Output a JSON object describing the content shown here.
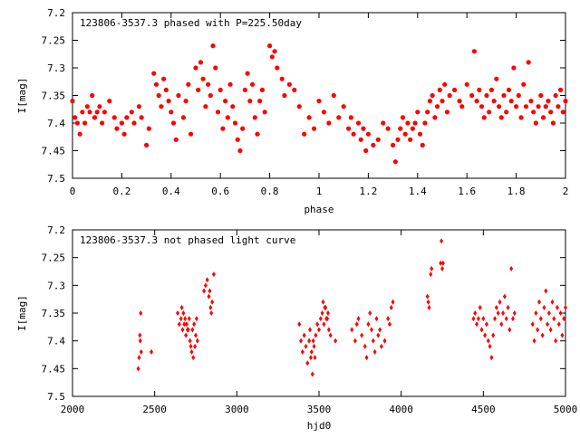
{
  "chart_data": [
    {
      "type": "scatter",
      "title": "123806-3537.3 phased with P=225.50day",
      "xlabel": "phase",
      "ylabel": "I[mag]",
      "xlim": [
        0,
        2
      ],
      "ylim": [
        7.2,
        7.5
      ],
      "y_inverted": true,
      "marker": "filled-circle",
      "xticks": [
        0,
        0.2,
        0.4,
        0.6,
        0.8,
        1,
        1.2,
        1.4,
        1.6,
        1.8,
        2
      ],
      "xtick_labels": [
        "0",
        "0.2",
        "0.4",
        "0.6",
        "0.8",
        "1",
        "1.2",
        "1.4",
        "1.6",
        "1.8",
        "2"
      ],
      "yticks": [
        7.2,
        7.25,
        7.3,
        7.35,
        7.4,
        7.45,
        7.5
      ],
      "ytick_labels": [
        "7.2",
        "7.25",
        "7.3",
        "7.35",
        "7.4",
        "7.45",
        "7.5"
      ],
      "grid": false,
      "color": "#ff0000",
      "points": [
        [
          0.0,
          7.36
        ],
        [
          0.01,
          7.39
        ],
        [
          0.02,
          7.4
        ],
        [
          0.03,
          7.42
        ],
        [
          0.04,
          7.38
        ],
        [
          0.05,
          7.4
        ],
        [
          0.06,
          7.37
        ],
        [
          0.07,
          7.38
        ],
        [
          0.08,
          7.35
        ],
        [
          0.09,
          7.39
        ],
        [
          0.1,
          7.38
        ],
        [
          0.11,
          7.37
        ],
        [
          0.12,
          7.4
        ],
        [
          0.13,
          7.38
        ],
        [
          0.15,
          7.36
        ],
        [
          0.17,
          7.39
        ],
        [
          0.18,
          7.41
        ],
        [
          0.2,
          7.4
        ],
        [
          0.21,
          7.42
        ],
        [
          0.22,
          7.39
        ],
        [
          0.24,
          7.38
        ],
        [
          0.25,
          7.4
        ],
        [
          0.27,
          7.37
        ],
        [
          0.28,
          7.39
        ],
        [
          0.3,
          7.44
        ],
        [
          0.31,
          7.41
        ],
        [
          0.33,
          7.31
        ],
        [
          0.34,
          7.33
        ],
        [
          0.35,
          7.35
        ],
        [
          0.36,
          7.37
        ],
        [
          0.37,
          7.32
        ],
        [
          0.38,
          7.34
        ],
        [
          0.39,
          7.36
        ],
        [
          0.4,
          7.38
        ],
        [
          0.41,
          7.4
        ],
        [
          0.42,
          7.43
        ],
        [
          0.43,
          7.35
        ],
        [
          0.45,
          7.39
        ],
        [
          0.46,
          7.36
        ],
        [
          0.47,
          7.33
        ],
        [
          0.48,
          7.42
        ],
        [
          0.5,
          7.3
        ],
        [
          0.51,
          7.34
        ],
        [
          0.52,
          7.29
        ],
        [
          0.53,
          7.32
        ],
        [
          0.54,
          7.37
        ],
        [
          0.55,
          7.33
        ],
        [
          0.56,
          7.35
        ],
        [
          0.57,
          7.26
        ],
        [
          0.58,
          7.3
        ],
        [
          0.59,
          7.38
        ],
        [
          0.6,
          7.34
        ],
        [
          0.61,
          7.41
        ],
        [
          0.62,
          7.36
        ],
        [
          0.63,
          7.39
        ],
        [
          0.64,
          7.33
        ],
        [
          0.65,
          7.37
        ],
        [
          0.66,
          7.4
        ],
        [
          0.67,
          7.43
        ],
        [
          0.68,
          7.45
        ],
        [
          0.69,
          7.41
        ],
        [
          0.7,
          7.34
        ],
        [
          0.71,
          7.31
        ],
        [
          0.72,
          7.36
        ],
        [
          0.73,
          7.33
        ],
        [
          0.74,
          7.39
        ],
        [
          0.75,
          7.42
        ],
        [
          0.76,
          7.36
        ],
        [
          0.77,
          7.34
        ],
        [
          0.78,
          7.38
        ],
        [
          0.8,
          7.26
        ],
        [
          0.81,
          7.28
        ],
        [
          0.82,
          7.27
        ],
        [
          0.83,
          7.3
        ],
        [
          0.85,
          7.32
        ],
        [
          0.86,
          7.35
        ],
        [
          0.88,
          7.33
        ],
        [
          0.9,
          7.34
        ],
        [
          0.92,
          7.37
        ],
        [
          0.94,
          7.42
        ],
        [
          0.96,
          7.39
        ],
        [
          0.98,
          7.41
        ],
        [
          1.0,
          7.36
        ],
        [
          1.02,
          7.38
        ],
        [
          1.04,
          7.4
        ],
        [
          1.06,
          7.35
        ],
        [
          1.08,
          7.39
        ],
        [
          1.1,
          7.37
        ],
        [
          1.12,
          7.41
        ],
        [
          1.13,
          7.39
        ],
        [
          1.14,
          7.42
        ],
        [
          1.16,
          7.4
        ],
        [
          1.17,
          7.43
        ],
        [
          1.18,
          7.41
        ],
        [
          1.19,
          7.45
        ],
        [
          1.2,
          7.42
        ],
        [
          1.22,
          7.44
        ],
        [
          1.24,
          7.43
        ],
        [
          1.26,
          7.4
        ],
        [
          1.28,
          7.41
        ],
        [
          1.3,
          7.44
        ],
        [
          1.31,
          7.47
        ],
        [
          1.32,
          7.43
        ],
        [
          1.33,
          7.41
        ],
        [
          1.34,
          7.39
        ],
        [
          1.35,
          7.42
        ],
        [
          1.36,
          7.4
        ],
        [
          1.37,
          7.43
        ],
        [
          1.38,
          7.41
        ],
        [
          1.39,
          7.4
        ],
        [
          1.4,
          7.38
        ],
        [
          1.41,
          7.42
        ],
        [
          1.42,
          7.44
        ],
        [
          1.43,
          7.4
        ],
        [
          1.44,
          7.38
        ],
        [
          1.45,
          7.36
        ],
        [
          1.46,
          7.35
        ],
        [
          1.47,
          7.39
        ],
        [
          1.48,
          7.37
        ],
        [
          1.49,
          7.34
        ],
        [
          1.5,
          7.36
        ],
        [
          1.51,
          7.33
        ],
        [
          1.52,
          7.38
        ],
        [
          1.53,
          7.35
        ],
        [
          1.55,
          7.34
        ],
        [
          1.57,
          7.36
        ],
        [
          1.58,
          7.37
        ],
        [
          1.6,
          7.33
        ],
        [
          1.62,
          7.35
        ],
        [
          1.63,
          7.27
        ],
        [
          1.64,
          7.36
        ],
        [
          1.65,
          7.34
        ],
        [
          1.66,
          7.37
        ],
        [
          1.67,
          7.39
        ],
        [
          1.68,
          7.35
        ],
        [
          1.69,
          7.38
        ],
        [
          1.7,
          7.34
        ],
        [
          1.71,
          7.36
        ],
        [
          1.72,
          7.32
        ],
        [
          1.73,
          7.37
        ],
        [
          1.74,
          7.39
        ],
        [
          1.75,
          7.35
        ],
        [
          1.76,
          7.38
        ],
        [
          1.77,
          7.34
        ],
        [
          1.78,
          7.36
        ],
        [
          1.79,
          7.3
        ],
        [
          1.8,
          7.37
        ],
        [
          1.81,
          7.35
        ],
        [
          1.82,
          7.39
        ],
        [
          1.83,
          7.33
        ],
        [
          1.84,
          7.37
        ],
        [
          1.85,
          7.29
        ],
        [
          1.86,
          7.36
        ],
        [
          1.87,
          7.38
        ],
        [
          1.88,
          7.4
        ],
        [
          1.89,
          7.37
        ],
        [
          1.9,
          7.35
        ],
        [
          1.91,
          7.39
        ],
        [
          1.92,
          7.37
        ],
        [
          1.93,
          7.36
        ],
        [
          1.94,
          7.38
        ],
        [
          1.95,
          7.4
        ],
        [
          1.96,
          7.35
        ],
        [
          1.97,
          7.37
        ],
        [
          1.98,
          7.34
        ],
        [
          1.99,
          7.38
        ],
        [
          2.0,
          7.36
        ]
      ]
    },
    {
      "type": "scatter",
      "title": "123806-3537.3 not phased light curve",
      "xlabel": "hjd0",
      "ylabel": "I[mag]",
      "xlim": [
        2000,
        5000
      ],
      "ylim": [
        7.2,
        7.5
      ],
      "y_inverted": true,
      "marker": "diamond",
      "xticks": [
        2000,
        2500,
        3000,
        3500,
        4000,
        4500,
        5000
      ],
      "xtick_labels": [
        "2000",
        "2500",
        "3000",
        "3500",
        "4000",
        "4500",
        "5000"
      ],
      "yticks": [
        7.2,
        7.25,
        7.3,
        7.35,
        7.4,
        7.45,
        7.5
      ],
      "ytick_labels": [
        "7.2",
        "7.25",
        "7.3",
        "7.35",
        "7.4",
        "7.45",
        "7.5"
      ],
      "grid": false,
      "color": "#ff0000",
      "points": [
        [
          2400,
          7.45
        ],
        [
          2405,
          7.43
        ],
        [
          2410,
          7.39
        ],
        [
          2412,
          7.4
        ],
        [
          2415,
          7.35
        ],
        [
          2418,
          7.42
        ],
        [
          2480,
          7.42
        ],
        [
          2640,
          7.35
        ],
        [
          2650,
          7.37
        ],
        [
          2660,
          7.36
        ],
        [
          2670,
          7.38
        ],
        [
          2680,
          7.37
        ],
        [
          2690,
          7.39
        ],
        [
          2700,
          7.38
        ],
        [
          2710,
          7.36
        ],
        [
          2715,
          7.4
        ],
        [
          2720,
          7.41
        ],
        [
          2730,
          7.38
        ],
        [
          2740,
          7.37
        ],
        [
          2750,
          7.39
        ],
        [
          2760,
          7.4
        ],
        [
          2665,
          7.34
        ],
        [
          2675,
          7.35
        ],
        [
          2685,
          7.36
        ],
        [
          2695,
          7.37
        ],
        [
          2705,
          7.38
        ],
        [
          2725,
          7.42
        ],
        [
          2735,
          7.43
        ],
        [
          2745,
          7.41
        ],
        [
          2755,
          7.36
        ],
        [
          2800,
          7.31
        ],
        [
          2810,
          7.3
        ],
        [
          2820,
          7.29
        ],
        [
          2830,
          7.32
        ],
        [
          2840,
          7.34
        ],
        [
          2850,
          7.33
        ],
        [
          2860,
          7.28
        ],
        [
          2845,
          7.35
        ],
        [
          2835,
          7.31
        ],
        [
          3380,
          7.37
        ],
        [
          3390,
          7.4
        ],
        [
          3400,
          7.42
        ],
        [
          3410,
          7.39
        ],
        [
          3420,
          7.41
        ],
        [
          3430,
          7.44
        ],
        [
          3440,
          7.4
        ],
        [
          3450,
          7.43
        ],
        [
          3460,
          7.46
        ],
        [
          3470,
          7.41
        ],
        [
          3480,
          7.39
        ],
        [
          3490,
          7.37
        ],
        [
          3500,
          7.38
        ],
        [
          3510,
          7.36
        ],
        [
          3520,
          7.35
        ],
        [
          3530,
          7.37
        ],
        [
          3540,
          7.34
        ],
        [
          3550,
          7.36
        ],
        [
          3560,
          7.38
        ],
        [
          3570,
          7.39
        ],
        [
          3445,
          7.38
        ],
        [
          3455,
          7.42
        ],
        [
          3465,
          7.4
        ],
        [
          3475,
          7.43
        ],
        [
          3525,
          7.33
        ],
        [
          3535,
          7.34
        ],
        [
          3545,
          7.36
        ],
        [
          3555,
          7.35
        ],
        [
          3600,
          7.4
        ],
        [
          3700,
          7.38
        ],
        [
          3720,
          7.4
        ],
        [
          3730,
          7.37
        ],
        [
          3740,
          7.36
        ],
        [
          3760,
          7.39
        ],
        [
          3780,
          7.41
        ],
        [
          3790,
          7.43
        ],
        [
          3800,
          7.37
        ],
        [
          3810,
          7.35
        ],
        [
          3820,
          7.38
        ],
        [
          3830,
          7.4
        ],
        [
          3840,
          7.42
        ],
        [
          3850,
          7.36
        ],
        [
          3860,
          7.39
        ],
        [
          3870,
          7.38
        ],
        [
          3880,
          7.41
        ],
        [
          3900,
          7.4
        ],
        [
          3920,
          7.36
        ],
        [
          3930,
          7.37
        ],
        [
          3940,
          7.34
        ],
        [
          3950,
          7.33
        ],
        [
          4160,
          7.32
        ],
        [
          4165,
          7.33
        ],
        [
          4170,
          7.34
        ],
        [
          4180,
          7.28
        ],
        [
          4185,
          7.27
        ],
        [
          4240,
          7.26
        ],
        [
          4245,
          7.22
        ],
        [
          4250,
          7.27
        ],
        [
          4255,
          7.26
        ],
        [
          4440,
          7.36
        ],
        [
          4450,
          7.35
        ],
        [
          4460,
          7.37
        ],
        [
          4470,
          7.36
        ],
        [
          4480,
          7.34
        ],
        [
          4490,
          7.38
        ],
        [
          4500,
          7.36
        ],
        [
          4510,
          7.39
        ],
        [
          4520,
          7.37
        ],
        [
          4530,
          7.4
        ],
        [
          4540,
          7.41
        ],
        [
          4550,
          7.43
        ],
        [
          4560,
          7.39
        ],
        [
          4570,
          7.36
        ],
        [
          4580,
          7.34
        ],
        [
          4590,
          7.35
        ],
        [
          4600,
          7.33
        ],
        [
          4610,
          7.37
        ],
        [
          4620,
          7.35
        ],
        [
          4630,
          7.32
        ],
        [
          4640,
          7.36
        ],
        [
          4650,
          7.34
        ],
        [
          4660,
          7.38
        ],
        [
          4670,
          7.27
        ],
        [
          4680,
          7.36
        ],
        [
          4690,
          7.35
        ],
        [
          4800,
          7.37
        ],
        [
          4810,
          7.4
        ],
        [
          4820,
          7.35
        ],
        [
          4830,
          7.38
        ],
        [
          4840,
          7.33
        ],
        [
          4850,
          7.36
        ],
        [
          4860,
          7.39
        ],
        [
          4870,
          7.34
        ],
        [
          4880,
          7.31
        ],
        [
          4890,
          7.37
        ],
        [
          4900,
          7.35
        ],
        [
          4910,
          7.38
        ],
        [
          4920,
          7.33
        ],
        [
          4930,
          7.36
        ],
        [
          4940,
          7.4
        ],
        [
          4950,
          7.34
        ],
        [
          4960,
          7.37
        ],
        [
          4970,
          7.35
        ],
        [
          4980,
          7.39
        ],
        [
          4990,
          7.36
        ],
        [
          5000,
          7.34
        ]
      ]
    }
  ]
}
